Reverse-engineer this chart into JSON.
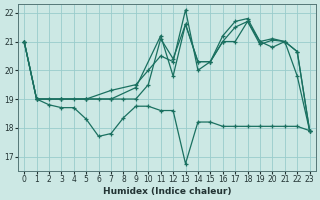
{
  "xlabel": "Humidex (Indice chaleur)",
  "background_color": "#cce8e4",
  "grid_color": "#99cccc",
  "line_color": "#1a7060",
  "xlim": [
    -0.5,
    23.5
  ],
  "ylim": [
    16.5,
    22.3
  ],
  "yticks": [
    17,
    18,
    19,
    20,
    21,
    22
  ],
  "xticks": [
    0,
    1,
    2,
    3,
    4,
    5,
    6,
    7,
    8,
    9,
    10,
    11,
    12,
    13,
    14,
    15,
    16,
    17,
    18,
    19,
    20,
    21,
    22,
    23
  ],
  "lines": [
    {
      "x": [
        0,
        1,
        2,
        3,
        4,
        5,
        6,
        7,
        8,
        9,
        10,
        11,
        12,
        13,
        14,
        15,
        16,
        17,
        18,
        19,
        20,
        21,
        22,
        23
      ],
      "y": [
        21,
        19,
        18.8,
        18.7,
        18.7,
        18.3,
        17.7,
        17.8,
        18.35,
        18.75,
        18.75,
        18.6,
        18.6,
        16.75,
        18.2,
        18.2,
        18.05,
        18.05,
        18.05,
        18.05,
        18.05,
        18.05,
        18.05,
        17.9
      ]
    },
    {
      "x": [
        0,
        1,
        2,
        3,
        4,
        5,
        6,
        7,
        8,
        9,
        10,
        11,
        12,
        13,
        14,
        15,
        16,
        17,
        18,
        19,
        20,
        21,
        22,
        23
      ],
      "y": [
        21,
        19,
        19,
        19,
        19,
        19,
        19,
        19,
        19,
        19,
        19.5,
        21.1,
        20.4,
        21.6,
        20.3,
        20.3,
        21.0,
        21.5,
        21.7,
        20.9,
        21.05,
        21.0,
        19.8,
        17.9
      ]
    },
    {
      "x": [
        0,
        1,
        3,
        5,
        7,
        9,
        10,
        11,
        12,
        13,
        14,
        15,
        16,
        17,
        18,
        19,
        20,
        21,
        22,
        23
      ],
      "y": [
        21,
        19,
        19,
        19,
        19.3,
        19.5,
        20.0,
        20.5,
        20.3,
        22.1,
        20.0,
        20.3,
        21.2,
        21.7,
        21.8,
        21.0,
        20.8,
        21.0,
        20.65,
        17.9
      ]
    },
    {
      "x": [
        0,
        1,
        3,
        5,
        7,
        9,
        11,
        12,
        13,
        14,
        15,
        16,
        17,
        18,
        19,
        20,
        21,
        22,
        23
      ],
      "y": [
        21,
        19,
        19,
        19,
        19,
        19.4,
        21.2,
        19.8,
        21.6,
        20.3,
        20.3,
        21.0,
        21.0,
        21.7,
        21.0,
        21.1,
        21.0,
        20.65,
        17.9
      ]
    }
  ]
}
